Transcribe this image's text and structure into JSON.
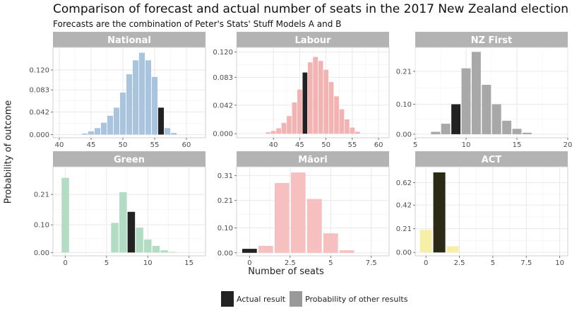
{
  "title": "Comparison of forecast and actual number of seats in the 2017 New Zealand election",
  "subtitle": "Forecasts are the combination of Peter's Stats' Stuff Models A and B",
  "chart_data": {
    "type": "bar",
    "ylabel": "Probability of outcome",
    "xlabel": "Number of seats",
    "legend": {
      "placement": "bottom",
      "entries": [
        {
          "label": "Actual result",
          "color": "#222222"
        },
        {
          "label": "Probability of other results",
          "color": "#999999"
        }
      ]
    },
    "panels": [
      {
        "party": "National",
        "color": "#a9c4de",
        "actual": 56,
        "xlim": [
          39,
          63
        ],
        "xticks": [
          40,
          45,
          50,
          55,
          60
        ],
        "ylim": [
          -0.006,
          0.162
        ],
        "yticks": [
          0,
          0.042,
          0.083,
          0.12
        ],
        "ytick_labels": [
          "0.000",
          "0.042",
          "0.083",
          "0.120"
        ],
        "x": [
          44,
          45,
          46,
          47,
          48,
          49,
          50,
          51,
          52,
          53,
          54,
          55,
          56,
          57,
          58
        ],
        "values": [
          0.002,
          0.006,
          0.012,
          0.022,
          0.035,
          0.05,
          0.078,
          0.112,
          0.138,
          0.152,
          0.138,
          0.107,
          0.05,
          0.012,
          0.003
        ]
      },
      {
        "party": "Labour",
        "color": "#f4b3b3",
        "actual": 46,
        "xlim": [
          33,
          62
        ],
        "xticks": [
          40,
          45,
          50,
          55,
          60
        ],
        "ylim": [
          -0.006,
          0.127
        ],
        "yticks": [
          0,
          0.042,
          0.083,
          0.12
        ],
        "ytick_labels": [
          "0.000",
          "0.042",
          "0.083",
          "0.120"
        ],
        "x": [
          39,
          40,
          41,
          42,
          43,
          44,
          45,
          46,
          47,
          48,
          49,
          50,
          51,
          52,
          53,
          54,
          55,
          56
        ],
        "values": [
          0.002,
          0.004,
          0.008,
          0.016,
          0.026,
          0.046,
          0.065,
          0.09,
          0.105,
          0.113,
          0.107,
          0.094,
          0.076,
          0.055,
          0.036,
          0.021,
          0.009,
          0.003
        ]
      },
      {
        "party": "NZ First",
        "color": "#a8a8a8",
        "actual": 9,
        "xlim": [
          5,
          20
        ],
        "xticks": [
          5,
          10,
          15,
          20
        ],
        "ylim": [
          -0.012,
          0.29
        ],
        "yticks": [
          0,
          0.1,
          0.21
        ],
        "ytick_labels": [
          "0.00",
          "0.10",
          "0.21"
        ],
        "x": [
          7,
          8,
          9,
          10,
          11,
          12,
          13,
          14,
          15,
          16
        ],
        "values": [
          0.008,
          0.035,
          0.1,
          0.22,
          0.275,
          0.165,
          0.1,
          0.045,
          0.018,
          0.005
        ]
      },
      {
        "party": "Green",
        "color": "#b2dcc4",
        "actual": 8,
        "xlim": [
          -1.5,
          17
        ],
        "xticks": [
          0,
          5,
          10,
          15
        ],
        "ylim": [
          -0.012,
          0.31
        ],
        "yticks": [
          0,
          0.1,
          0.21
        ],
        "ytick_labels": [
          "0.00",
          "0.10",
          "0.21"
        ],
        "x": [
          0,
          6,
          7,
          8,
          9,
          10,
          11,
          12,
          13
        ],
        "values": [
          0.27,
          0.107,
          0.218,
          0.147,
          0.09,
          0.047,
          0.024,
          0.008,
          0.002
        ]
      },
      {
        "party": "Māori",
        "color": "#f7c0c0",
        "actual": 0,
        "xlim": [
          -0.8,
          8.6
        ],
        "xticks": [
          0,
          2.5,
          5,
          7.5
        ],
        "ytick_labels": [
          "0.00",
          "0.10",
          "0.21",
          "0.31"
        ],
        "ylim": [
          -0.012,
          0.345
        ],
        "yticks": [
          0,
          0.1,
          0.21,
          0.31
        ],
        "x": [
          0,
          1,
          2,
          3,
          4,
          5,
          6
        ],
        "values": [
          0.016,
          0.028,
          0.28,
          0.322,
          0.216,
          0.078,
          0.01
        ]
      },
      {
        "party": "ACT",
        "color": "#f8efa6",
        "actual": 1,
        "xlim": [
          -0.8,
          10.6
        ],
        "xticks": [
          0,
          2.5,
          5,
          7.5,
          10
        ],
        "ylim": [
          -0.03,
          0.76
        ],
        "yticks": [
          0,
          0.21,
          0.42,
          0.62
        ],
        "ytick_labels": [
          "0.00",
          "0.21",
          "0.42",
          "0.62"
        ],
        "x": [
          0,
          1,
          2
        ],
        "values": [
          0.2,
          0.71,
          0.055
        ]
      }
    ]
  }
}
